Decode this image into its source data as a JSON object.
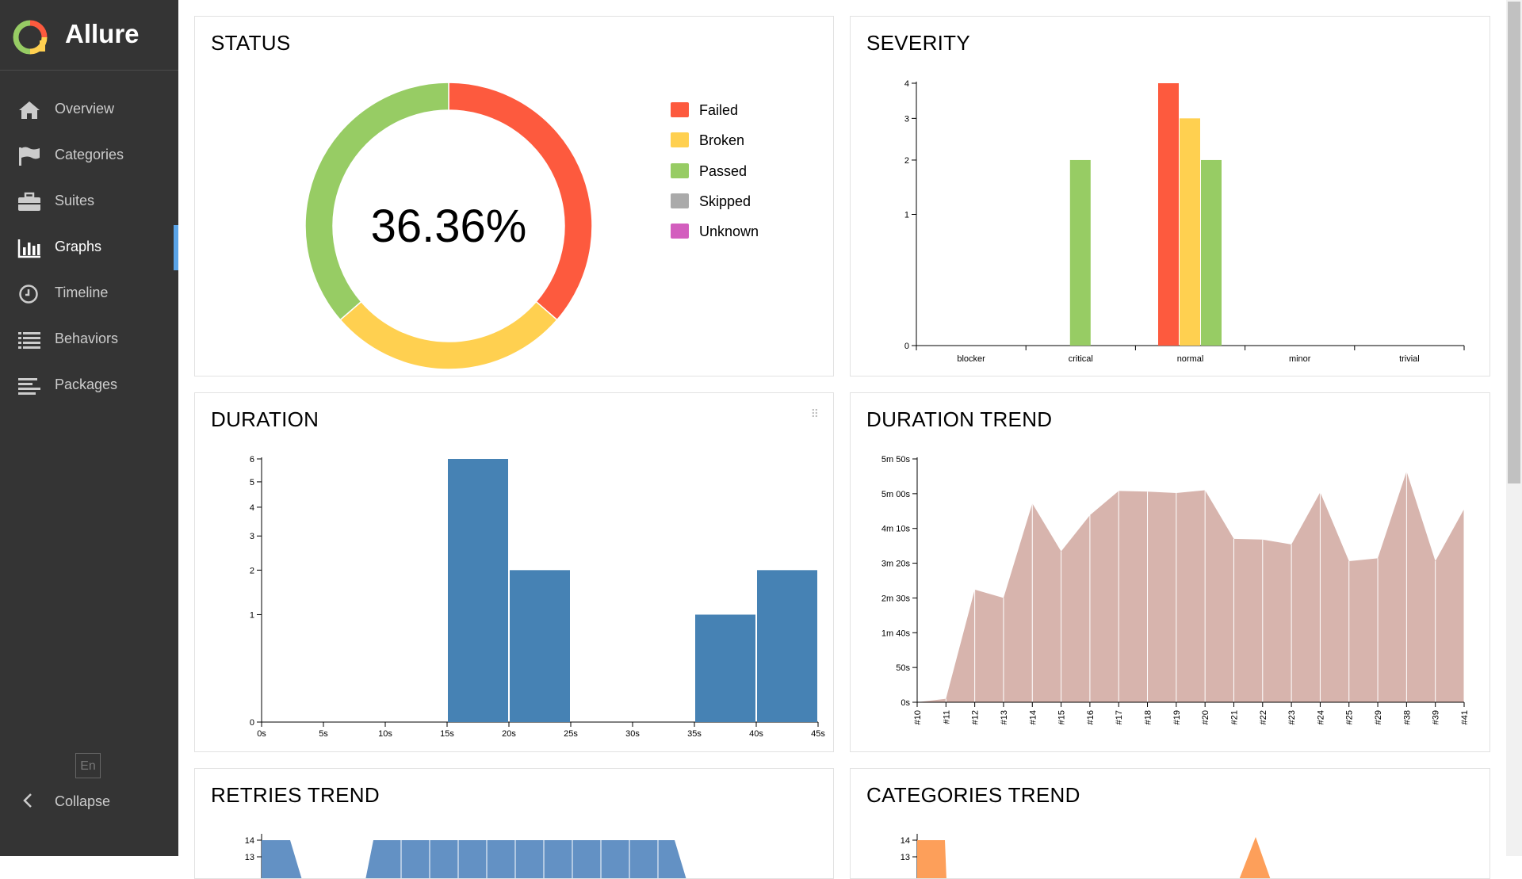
{
  "app": {
    "name": "Allure"
  },
  "sidebar": {
    "items": [
      {
        "label": "Overview",
        "icon": "home-icon"
      },
      {
        "label": "Categories",
        "icon": "flag-icon"
      },
      {
        "label": "Suites",
        "icon": "briefcase-icon"
      },
      {
        "label": "Graphs",
        "icon": "bar-chart-icon",
        "active": true
      },
      {
        "label": "Timeline",
        "icon": "clock-icon"
      },
      {
        "label": "Behaviors",
        "icon": "list-icon"
      },
      {
        "label": "Packages",
        "icon": "align-left-icon"
      }
    ],
    "language": "En",
    "collapse_label": "Collapse"
  },
  "colors": {
    "failed": "#fd5a3e",
    "broken": "#ffd050",
    "passed": "#97cc64",
    "skipped": "#aaaaaa",
    "unknown": "#d35ebe",
    "bar": "#4682b4",
    "trend": "#d7b4ad",
    "retries": "#6391c4",
    "categories": "#fd9f5a"
  },
  "widgets": {
    "status": {
      "title": "STATUS"
    },
    "severity": {
      "title": "SEVERITY"
    },
    "duration": {
      "title": "DURATION"
    },
    "duration_trend": {
      "title": "DURATION TREND"
    },
    "retries_trend": {
      "title": "RETRIES TREND"
    },
    "categories_trend": {
      "title": "CATEGORIES TREND"
    }
  },
  "chart_data": [
    {
      "id": "status",
      "type": "pie",
      "title": "STATUS",
      "center_label": "36.36%",
      "slices": [
        {
          "name": "Failed",
          "value": 4,
          "color": "#fd5a3e"
        },
        {
          "name": "Broken",
          "value": 3,
          "color": "#ffd050"
        },
        {
          "name": "Passed",
          "value": 4,
          "color": "#97cc64"
        },
        {
          "name": "Skipped",
          "value": 0,
          "color": "#aaaaaa"
        },
        {
          "name": "Unknown",
          "value": 0,
          "color": "#d35ebe"
        }
      ]
    },
    {
      "id": "severity",
      "type": "bar",
      "title": "SEVERITY",
      "categories": [
        "blocker",
        "critical",
        "normal",
        "minor",
        "trivial"
      ],
      "series": [
        {
          "name": "Failed",
          "color": "#fd5a3e",
          "values": [
            0,
            0,
            4,
            0,
            0
          ]
        },
        {
          "name": "Broken",
          "color": "#ffd050",
          "values": [
            0,
            0,
            3,
            0,
            0
          ]
        },
        {
          "name": "Passed",
          "color": "#97cc64",
          "values": [
            0,
            2,
            2,
            0,
            0
          ]
        }
      ],
      "yticks": [
        0,
        1,
        2,
        3,
        4
      ],
      "ylim": [
        0,
        4
      ]
    },
    {
      "id": "duration",
      "type": "bar",
      "title": "DURATION",
      "bins": [
        {
          "from": 15,
          "to": 20,
          "value": 6
        },
        {
          "from": 20,
          "to": 25,
          "value": 2
        },
        {
          "from": 35,
          "to": 40,
          "value": 1
        },
        {
          "from": 40,
          "to": 45,
          "value": 2
        }
      ],
      "xticks": [
        "0s",
        "5s",
        "10s",
        "15s",
        "20s",
        "25s",
        "30s",
        "35s",
        "40s",
        "45s"
      ],
      "xlim": [
        0,
        45
      ],
      "yticks": [
        0,
        1,
        2,
        3,
        4,
        5,
        6
      ],
      "ylim": [
        0,
        6
      ]
    },
    {
      "id": "duration_trend",
      "type": "area",
      "title": "DURATION TREND",
      "x": [
        "#10",
        "#11",
        "#12",
        "#13",
        "#14",
        "#15",
        "#16",
        "#17",
        "#18",
        "#19",
        "#20",
        "#21",
        "#22",
        "#23",
        "#24",
        "#25",
        "#29",
        "#38",
        "#39",
        "#41"
      ],
      "values_seconds": [
        0,
        5,
        162,
        150,
        286,
        217,
        269,
        304,
        303,
        301,
        305,
        235,
        234,
        227,
        302,
        203,
        207,
        332,
        203,
        278
      ],
      "yticks": [
        "0s",
        "50s",
        "1m 40s",
        "2m 30s",
        "3m 20s",
        "4m 10s",
        "5m 00s",
        "5m 50s"
      ],
      "ylim_seconds": [
        0,
        350
      ]
    },
    {
      "id": "retries_trend",
      "type": "area",
      "title": "RETRIES TREND",
      "yticks": [
        13,
        14
      ]
    },
    {
      "id": "categories_trend",
      "type": "area",
      "title": "CATEGORIES TREND",
      "yticks": [
        13,
        14
      ]
    }
  ]
}
